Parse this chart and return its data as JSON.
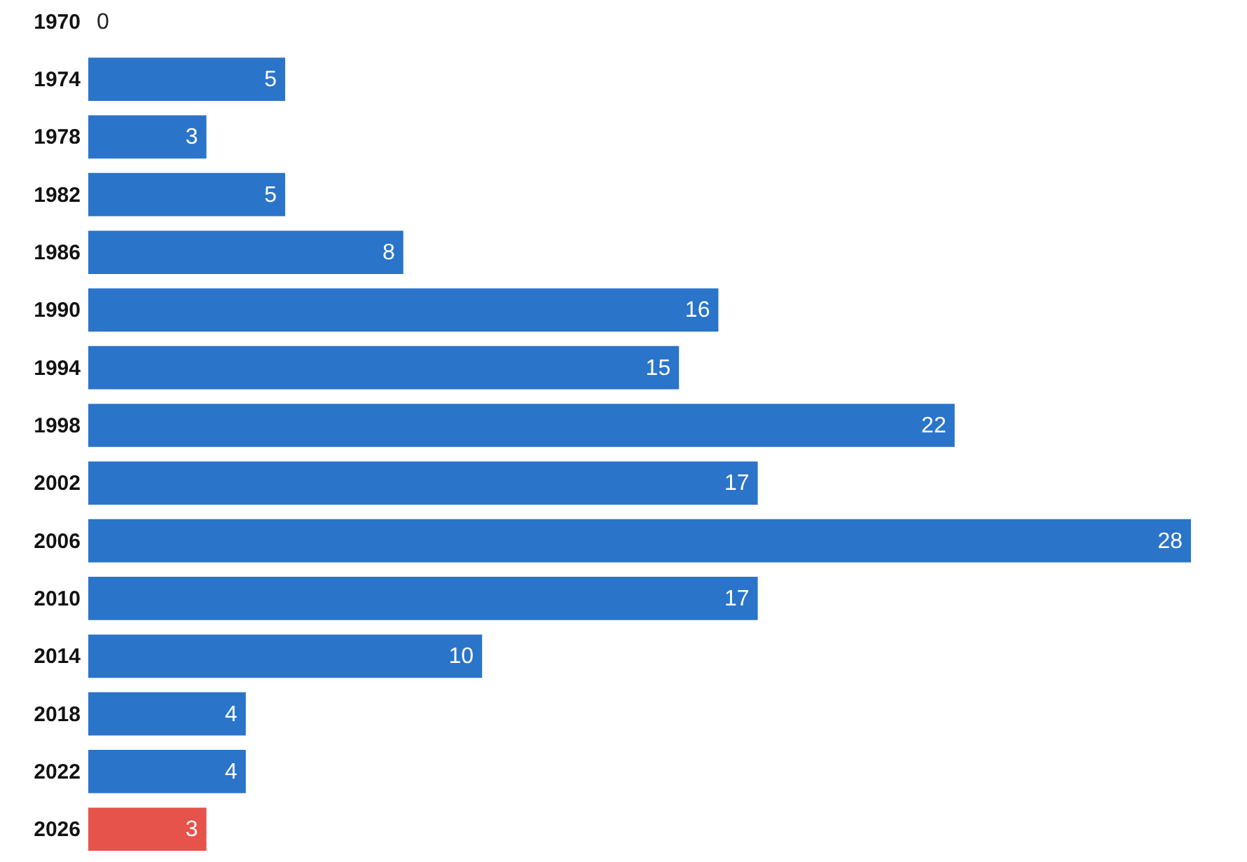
{
  "chart_data": {
    "type": "bar",
    "orientation": "horizontal",
    "categories": [
      "1970",
      "1974",
      "1978",
      "1982",
      "1986",
      "1990",
      "1994",
      "1998",
      "2002",
      "2006",
      "2010",
      "2014",
      "2018",
      "2022",
      "2026"
    ],
    "values": [
      0,
      5,
      3,
      5,
      8,
      16,
      15,
      22,
      17,
      28,
      17,
      10,
      4,
      4,
      3
    ],
    "colors": [
      "#2a74c9",
      "#2a74c9",
      "#2a74c9",
      "#2a74c9",
      "#2a74c9",
      "#2a74c9",
      "#2a74c9",
      "#2a74c9",
      "#2a74c9",
      "#2a74c9",
      "#2a74c9",
      "#2a74c9",
      "#2a74c9",
      "#2a74c9",
      "#e5534b"
    ],
    "xlim": [
      0,
      28
    ],
    "data_labels": true,
    "tick_labels": "y"
  }
}
